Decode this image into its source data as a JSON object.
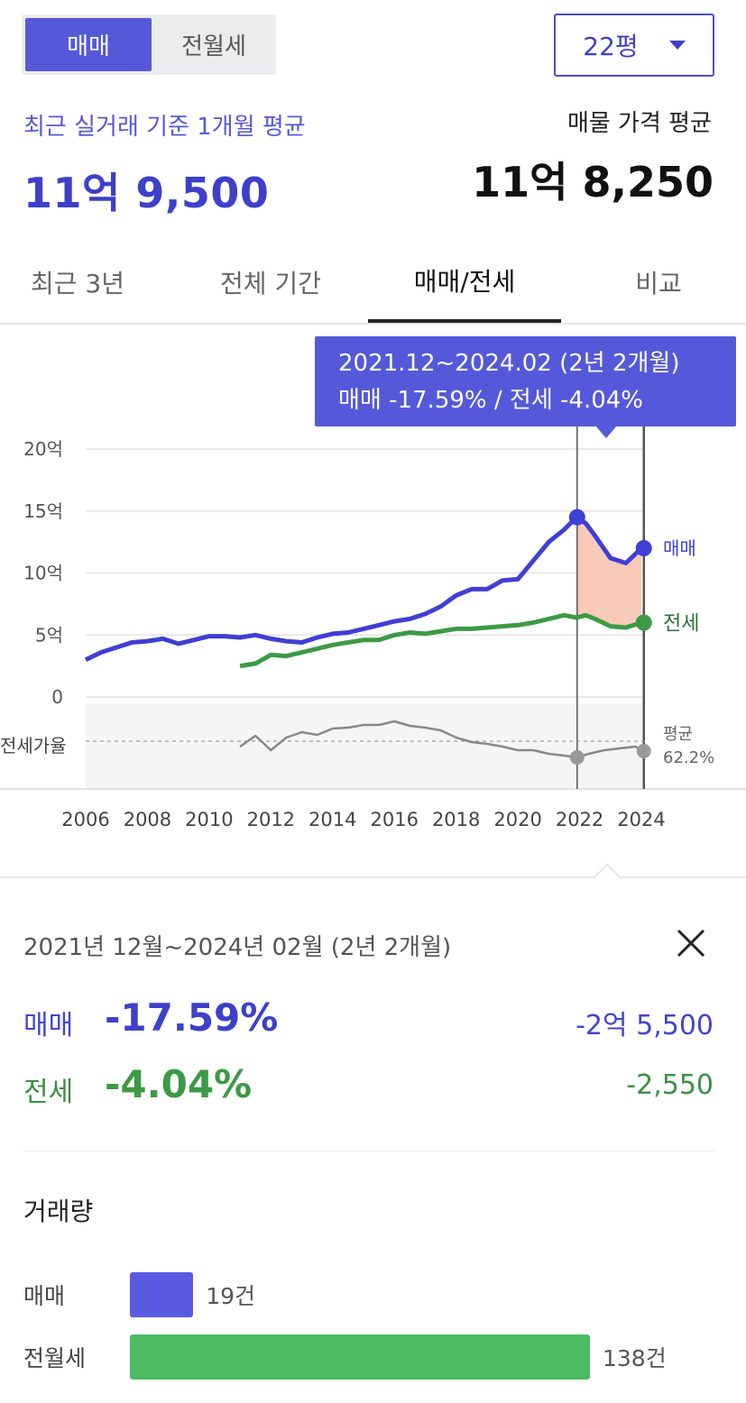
{
  "toggle": {
    "sale_label": "매매",
    "rent_label": "전월세"
  },
  "size_select": {
    "value": "22평"
  },
  "summary": {
    "recent_label": "최근 실거래 기준 1개월 평균",
    "recent_value": "11억 9,500",
    "listing_label": "매물 가격 평균",
    "listing_value": "11억 8,250"
  },
  "tabs": [
    {
      "label": "최근 3년"
    },
    {
      "label": "전체 기간"
    },
    {
      "label": "매매/전세"
    },
    {
      "label": "비교"
    }
  ],
  "tooltip": {
    "line1": "2021.12~2024.02 (2년 2개월)",
    "line2": "매매 -17.59%  /  전세 -4.04%"
  },
  "chart_data": {
    "type": "line",
    "y_ticks": [
      "20억",
      "15억",
      "10억",
      "5억",
      "0"
    ],
    "ylim": [
      0,
      20
    ],
    "x_ticks": [
      "2006",
      "2008",
      "2010",
      "2012",
      "2014",
      "2016",
      "2018",
      "2020",
      "2022",
      "2024"
    ],
    "xlim": [
      2006,
      2024.3
    ],
    "ratio_axis_label": "전세가율",
    "ratio_end_label": "평균",
    "ratio_end_value": "62.2%",
    "highlight_range": [
      "2021.12",
      "2024.02"
    ],
    "series": [
      {
        "name": "매매",
        "color": "#3f3fd6",
        "x": [
          2006.0,
          2006.5,
          2007.0,
          2007.5,
          2008.0,
          2008.5,
          2009.0,
          2009.5,
          2010.0,
          2010.5,
          2011.0,
          2011.5,
          2012.0,
          2012.5,
          2013.0,
          2013.5,
          2014.0,
          2014.5,
          2015.0,
          2015.5,
          2016.0,
          2016.5,
          2017.0,
          2017.5,
          2018.0,
          2018.5,
          2019.0,
          2019.5,
          2020.0,
          2020.5,
          2021.0,
          2021.5,
          2021.9,
          2022.2,
          2022.5,
          2023.0,
          2023.5,
          2024.0
        ],
        "values": [
          3.0,
          3.6,
          4.0,
          4.4,
          4.5,
          4.7,
          4.3,
          4.6,
          4.9,
          4.9,
          4.8,
          5.0,
          4.7,
          4.5,
          4.4,
          4.8,
          5.1,
          5.2,
          5.5,
          5.8,
          6.1,
          6.3,
          6.7,
          7.3,
          8.2,
          8.7,
          8.7,
          9.4,
          9.5,
          11.0,
          12.5,
          13.5,
          14.5,
          14.0,
          13.0,
          11.2,
          10.8,
          12.0
        ]
      },
      {
        "name": "전세",
        "color": "#3c9a45",
        "x": [
          2011.0,
          2011.5,
          2012.0,
          2012.5,
          2013.0,
          2013.5,
          2014.0,
          2014.5,
          2015.0,
          2015.5,
          2016.0,
          2016.5,
          2017.0,
          2017.5,
          2018.0,
          2018.5,
          2019.0,
          2019.5,
          2020.0,
          2020.5,
          2021.0,
          2021.5,
          2021.9,
          2022.2,
          2022.5,
          2023.0,
          2023.5,
          2024.0
        ],
        "values": [
          2.5,
          2.7,
          3.4,
          3.3,
          3.6,
          3.9,
          4.2,
          4.4,
          4.6,
          4.6,
          5.0,
          5.2,
          5.1,
          5.3,
          5.5,
          5.5,
          5.6,
          5.7,
          5.8,
          6.0,
          6.3,
          6.6,
          6.4,
          6.6,
          6.3,
          5.7,
          5.6,
          6.0
        ]
      }
    ]
  },
  "chart_labels": {
    "sale_end": "매매",
    "rent_end": "전세"
  },
  "detail": {
    "period": "2021년 12월~2024년 02월 (2년 2개월)",
    "sale_label": "매매",
    "sale_pct": "-17.59%",
    "sale_amount": "-2억 5,500",
    "rent_label": "전세",
    "rent_pct": "-4.04%",
    "rent_amount": "-2,550"
  },
  "volume": {
    "title": "거래량",
    "sale_label": "매매",
    "sale_count": 19,
    "sale_count_text": "19건",
    "rent_label": "전월세",
    "rent_count": 138,
    "rent_count_text": "138건"
  },
  "colors": {
    "accent": "#5559d9",
    "sale": "#3f3fd6",
    "rent": "#3c9a45",
    "volume_sale": "#5a5ae0",
    "volume_rent": "#4cbb62",
    "highlight": "#f7c4b3"
  }
}
